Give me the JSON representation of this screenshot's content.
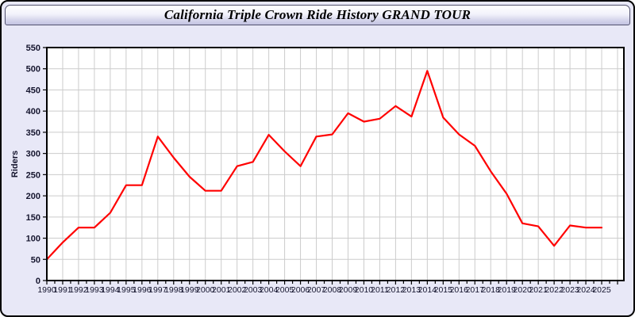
{
  "window": {
    "title": "California Triple Crown Ride History GRAND TOUR"
  },
  "chart_data": {
    "type": "line",
    "title": "California Triple Crown Ride History GRAND TOUR",
    "xlabel": "",
    "ylabel": "Riders",
    "x": [
      1990,
      1991,
      1992,
      1993,
      1994,
      1995,
      1996,
      1997,
      1998,
      1999,
      2000,
      2001,
      2002,
      2003,
      2004,
      2005,
      2006,
      2007,
      2008,
      2009,
      2010,
      2011,
      2012,
      2013,
      2014,
      2015,
      2016,
      2017,
      2018,
      2019,
      2020,
      2021,
      2022,
      2023,
      2024,
      2025
    ],
    "series": [
      {
        "name": "Riders",
        "color": "#ff0000",
        "values": [
          50,
          90,
          125,
          125,
          160,
          225,
          225,
          340,
          290,
          245,
          212,
          212,
          270,
          280,
          344,
          305,
          270,
          340,
          345,
          395,
          375,
          382,
          412,
          387,
          495,
          385,
          345,
          318,
          258,
          205,
          135,
          128,
          82,
          130,
          125,
          125
        ]
      }
    ],
    "xlim": [
      1990,
      2026.4
    ],
    "ylim": [
      0,
      550
    ],
    "y_tick_step": 50,
    "x_tick_step": 1,
    "x_minor_tick_step": 0.5,
    "grid": true,
    "legend": "none",
    "colors": {
      "plot_bg": "#ffffff",
      "outer_bg": "#e8e8f7",
      "grid": "#cccccc",
      "axis": "#000000",
      "tick_label": "#15152e",
      "line": "#ff0000"
    }
  }
}
